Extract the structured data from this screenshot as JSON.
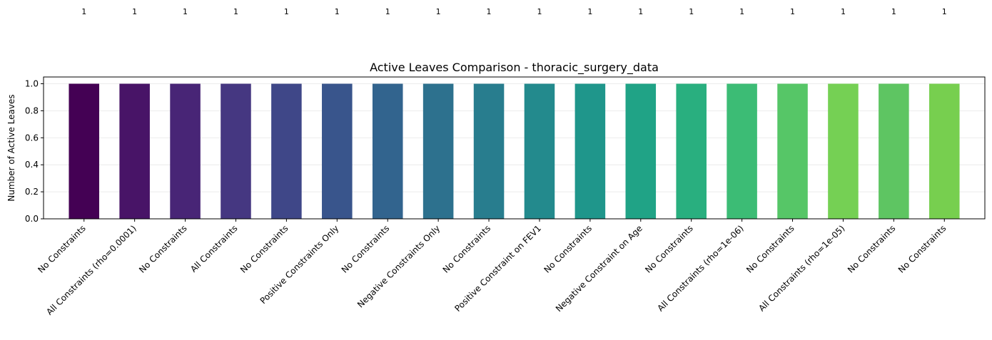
{
  "chart_data": {
    "type": "bar",
    "title": "Active Leaves Comparison - thoracic_surgery_data",
    "xlabel": "",
    "ylabel": "Number of Active Leaves",
    "ylim": [
      0,
      1.05
    ],
    "yticks": [
      "0.0",
      "0.2",
      "0.4",
      "0.6",
      "0.8",
      "1.0"
    ],
    "grid": "y",
    "categories": [
      "No Constraints",
      "All Constraints (rho=0.0001)",
      "No Constraints",
      "All Constraints",
      "No Constraints",
      "Positive Constraints Only",
      "No Constraints",
      "Negative Constraints Only",
      "No Constraints",
      "Positive Constraint on FEV1",
      "No Constraints",
      "Negative Constraint on Age",
      "No Constraints",
      "All Constraints (rho=1e-06)",
      "No Constraints",
      "All Constraints (rho=1e-05)",
      "No Constraints",
      "No Constraints"
    ],
    "values": [
      1,
      1,
      1,
      1,
      1,
      1,
      1,
      1,
      1,
      1,
      1,
      1,
      1,
      1,
      1,
      1,
      1,
      1
    ],
    "data_labels": [
      "1",
      "1",
      "1",
      "1",
      "1",
      "1",
      "1",
      "1",
      "1",
      "1",
      "1",
      "1",
      "1",
      "1",
      "1",
      "1",
      "1",
      "1"
    ],
    "colors": [
      "#440154",
      "#481769",
      "#472a7a",
      "#433d84",
      "#3d4e8a",
      "#355e8d",
      "#2e6d8e",
      "#297b8e",
      "#23898e",
      "#1f978b",
      "#21a585",
      "#2eb37c",
      "#46c06f",
      "#65cb5e",
      "#89d548",
      "#b0dd2f",
      "#d8e219",
      "#fde725"
    ],
    "bar_colors_shown": [
      "#440154",
      "#481467",
      "#482576",
      "#453781",
      "#3f4788",
      "#39558c",
      "#32648e",
      "#2d718e",
      "#287d8e",
      "#238a8d",
      "#1f968b",
      "#20a386",
      "#29af7f",
      "#3cbc75",
      "#56c667",
      "#75d054",
      "#5ec562",
      "#77cf4f"
    ]
  }
}
